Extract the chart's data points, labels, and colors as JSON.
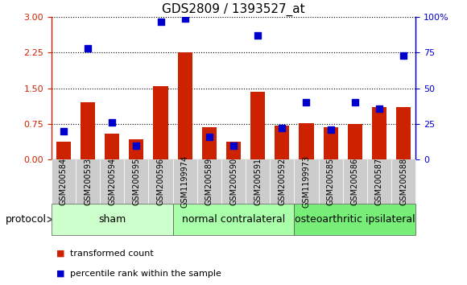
{
  "title": "GDS2809 / 1393527_at",
  "samples": [
    "GSM200584",
    "GSM200593",
    "GSM200594",
    "GSM200595",
    "GSM200596",
    "GSM1199974",
    "GSM200589",
    "GSM200590",
    "GSM200591",
    "GSM200592",
    "GSM1199973",
    "GSM200585",
    "GSM200586",
    "GSM200587",
    "GSM200588"
  ],
  "red_values": [
    0.38,
    1.2,
    0.55,
    0.42,
    1.54,
    2.26,
    0.68,
    0.38,
    1.42,
    0.72,
    0.76,
    0.68,
    0.75,
    1.1,
    1.1
  ],
  "blue_pct": [
    20,
    78,
    26,
    10,
    97,
    99,
    16,
    10,
    87,
    22,
    40,
    21,
    40,
    36,
    73
  ],
  "groups": [
    {
      "name": "sham",
      "indices": [
        0,
        1,
        2,
        3,
        4
      ],
      "color": "#ccffcc"
    },
    {
      "name": "normal contralateral",
      "indices": [
        5,
        6,
        7,
        8,
        9
      ],
      "color": "#aaffaa"
    },
    {
      "name": "osteoarthritic ipsilateral",
      "indices": [
        10,
        11,
        12,
        13,
        14
      ],
      "color": "#77ee77"
    }
  ],
  "left_ylim": [
    0,
    3
  ],
  "right_ylim": [
    0,
    100
  ],
  "left_yticks": [
    0,
    0.75,
    1.5,
    2.25,
    3.0
  ],
  "right_yticks": [
    0,
    25,
    50,
    75,
    100
  ],
  "right_yticklabels": [
    "0",
    "25",
    "50",
    "75",
    "100%"
  ],
  "red_color": "#cc2200",
  "blue_color": "#0000cc",
  "bar_width": 0.6,
  "blue_marker_size": 6,
  "title_fontsize": 11,
  "tick_fontsize": 7,
  "label_fontsize": 8,
  "group_fontsize": 9,
  "protocol_fontsize": 9,
  "background_color": "#ffffff",
  "tick_bg_color": "#cccccc",
  "grid_yticks": [
    0.75,
    1.5,
    2.25,
    3.0
  ]
}
